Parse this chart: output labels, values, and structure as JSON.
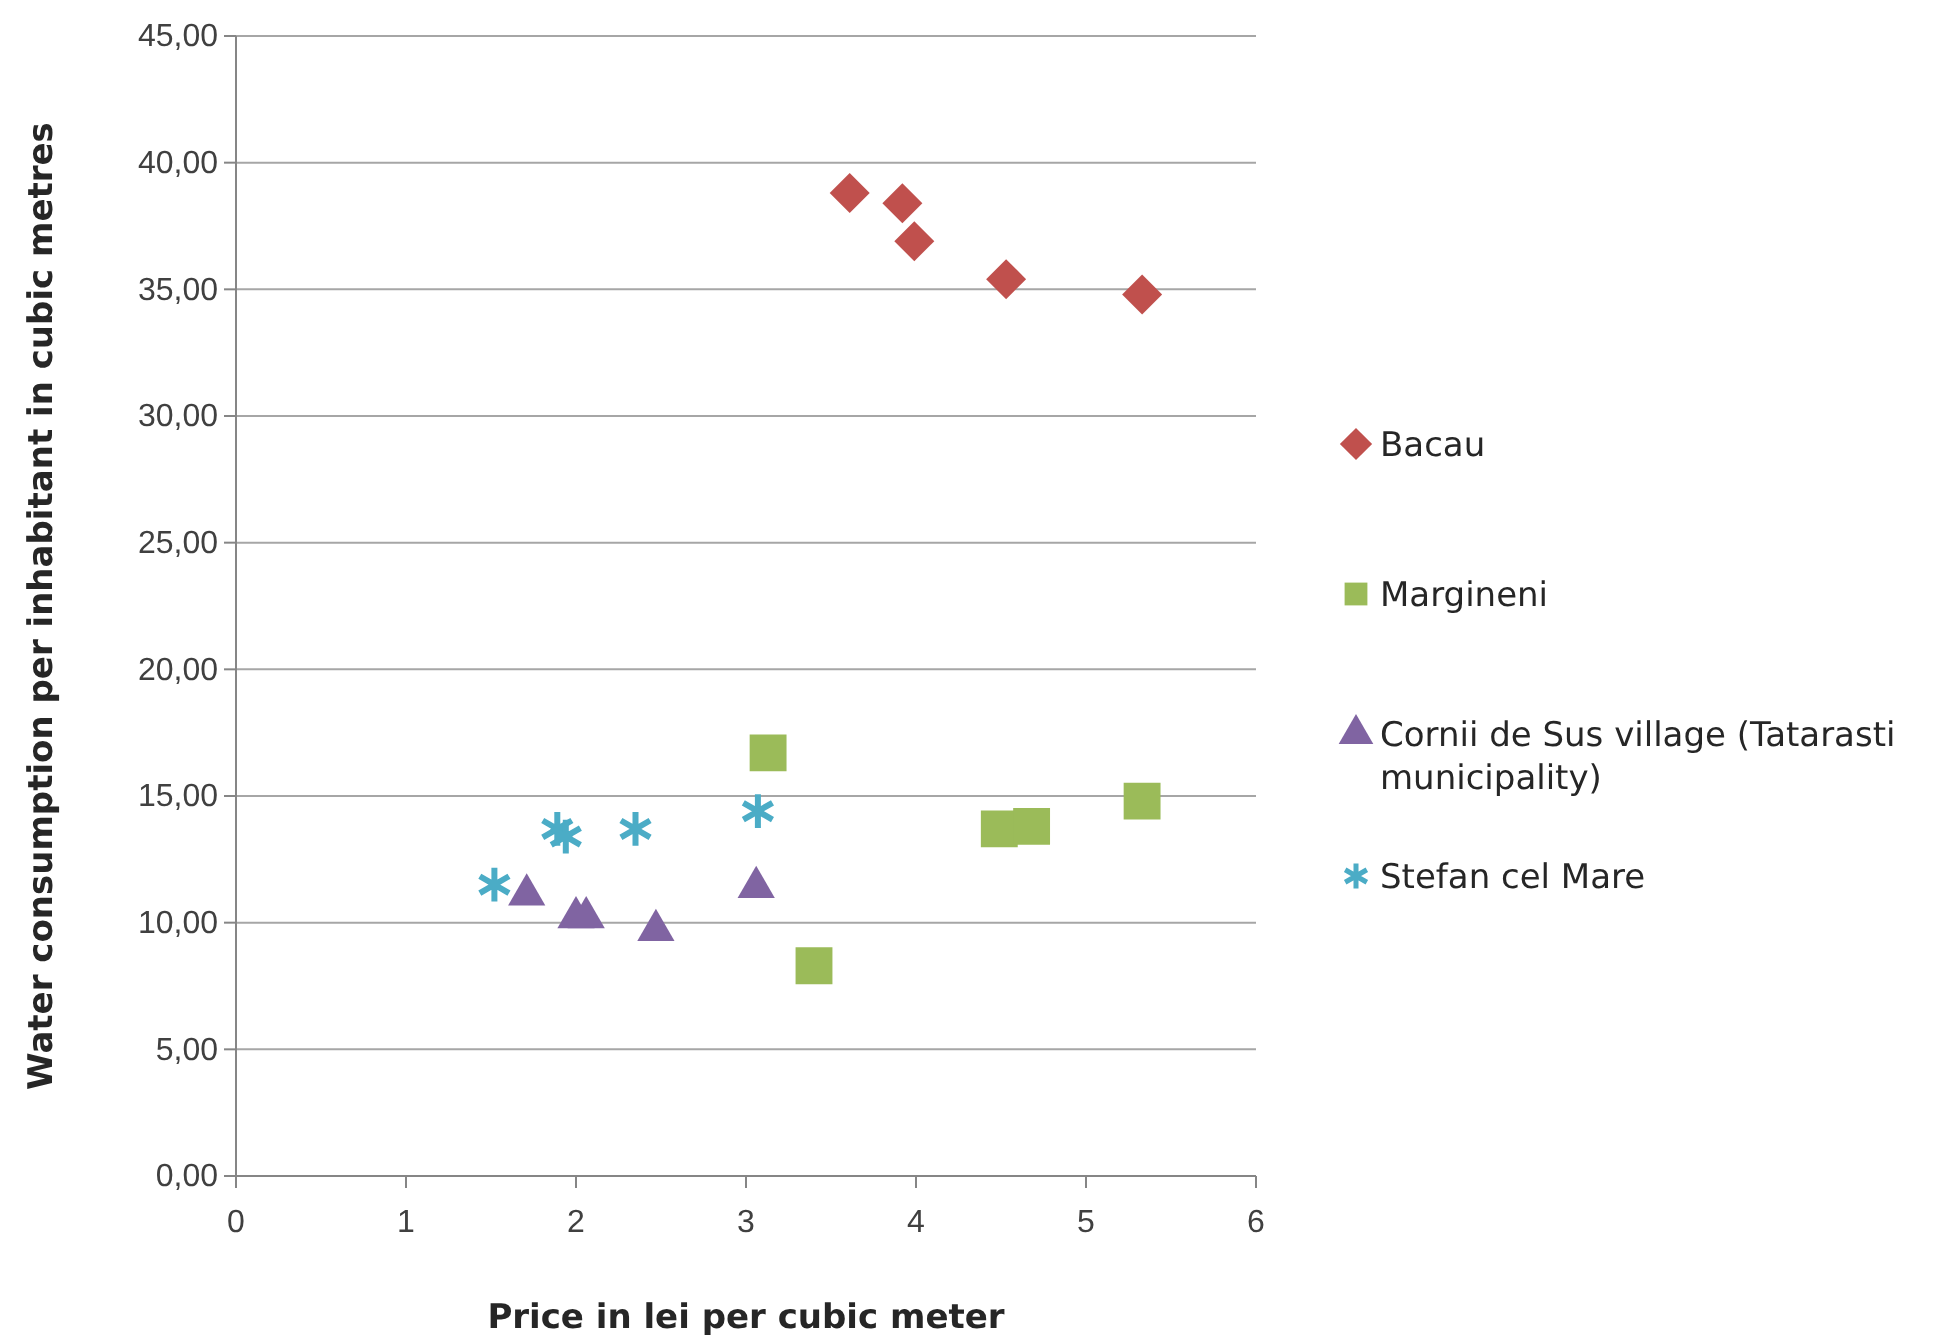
{
  "chart_data": {
    "type": "scatter",
    "xlabel": "Price in lei per cubic meter",
    "ylabel": "Water consumption per inhabitant in cubic metres",
    "xlim": [
      0,
      6
    ],
    "xticks": [
      0,
      1,
      2,
      3,
      4,
      5,
      6
    ],
    "ylim": [
      0,
      45
    ],
    "yticks": [
      {
        "value": 0,
        "label": "0,00"
      },
      {
        "value": 5,
        "label": "5,00"
      },
      {
        "value": 10,
        "label": "10,00"
      },
      {
        "value": 15,
        "label": "15,00"
      },
      {
        "value": 20,
        "label": "20,00"
      },
      {
        "value": 25,
        "label": "25,00"
      },
      {
        "value": 30,
        "label": "30,00"
      },
      {
        "value": 35,
        "label": "35,00"
      },
      {
        "value": 40,
        "label": "40,00"
      },
      {
        "value": 45,
        "label": "45,00"
      }
    ],
    "grid": "y",
    "legend": "right",
    "series": [
      {
        "name": "Bacau",
        "color": "#c0504d",
        "marker": "diamond",
        "x": [
          3.61,
          3.92,
          3.99,
          4.53,
          5.33
        ],
        "values": [
          38.8,
          38.4,
          36.9,
          35.4,
          34.8
        ]
      },
      {
        "name": "Margineni",
        "color": "#9bbb59",
        "marker": "square",
        "x": [
          3.13,
          3.4,
          4.49,
          4.68,
          5.33
        ],
        "values": [
          16.7,
          8.3,
          13.7,
          13.8,
          14.8
        ]
      },
      {
        "name": "Cornii de Sus village (Tatarasti municipality)",
        "color": "#8064a2",
        "marker": "triangle",
        "x": [
          1.71,
          2.0,
          2.06,
          2.47,
          3.06
        ],
        "values": [
          11.1,
          10.2,
          10.2,
          9.7,
          11.4
        ]
      },
      {
        "name": "Stefan cel Mare",
        "color": "#4bacc6",
        "marker": "cross",
        "x": [
          1.52,
          1.89,
          1.94,
          2.35,
          3.07
        ],
        "values": [
          11.5,
          13.7,
          13.4,
          13.7,
          14.4
        ]
      }
    ]
  }
}
